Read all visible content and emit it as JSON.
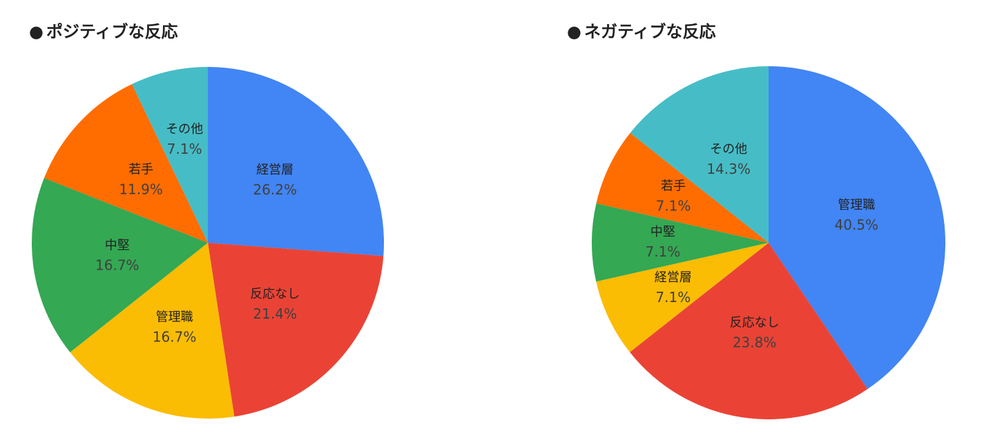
{
  "chart_data": [
    {
      "type": "pie",
      "title": "ポジティブな反応",
      "title_bullet": "●",
      "start_angle": "12 o'clock",
      "direction": "clockwise",
      "slices": [
        {
          "label": "経営層",
          "value": 26.2,
          "value_label": "26.2%",
          "color": "#4285F4"
        },
        {
          "label": "反応なし",
          "value": 21.4,
          "value_label": "21.4%",
          "color": "#EA4335"
        },
        {
          "label": "管理職",
          "value": 16.7,
          "value_label": "16.7%",
          "color": "#FBBC04"
        },
        {
          "label": "中堅",
          "value": 16.7,
          "value_label": "16.7%",
          "color": "#34A853"
        },
        {
          "label": "若手",
          "value": 11.9,
          "value_label": "11.9%",
          "color": "#FF6D01"
        },
        {
          "label": "その他",
          "value": 7.1,
          "value_label": "7.1%",
          "color": "#46BDC6"
        }
      ]
    },
    {
      "type": "pie",
      "title": "ネガティブな反応",
      "title_bullet": "●",
      "start_angle": "12 o'clock",
      "direction": "clockwise",
      "slices": [
        {
          "label": "管理職",
          "value": 40.5,
          "value_label": "40.5%",
          "color": "#4285F4"
        },
        {
          "label": "反応なし",
          "value": 23.8,
          "value_label": "23.8%",
          "color": "#EA4335"
        },
        {
          "label": "経営層",
          "value": 7.1,
          "value_label": "7.1%",
          "color": "#FBBC04"
        },
        {
          "label": "中堅",
          "value": 7.1,
          "value_label": "7.1%",
          "color": "#34A853"
        },
        {
          "label": "若手",
          "value": 7.1,
          "value_label": "7.1%",
          "color": "#FF6D01"
        },
        {
          "label": "その他",
          "value": 14.3,
          "value_label": "14.3%",
          "color": "#46BDC6"
        }
      ]
    }
  ]
}
